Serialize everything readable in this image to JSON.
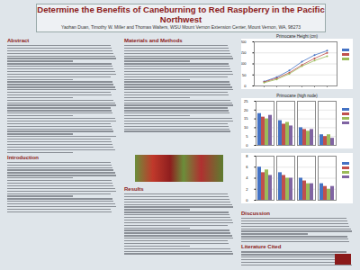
{
  "header": {
    "title": "Determine the Benefits of Caneburning to Red Raspberry in the Pacific Northwest",
    "authors": "Yaohan Duan, Timothy W. Miller and Thomas Walters, WSU Mount Vernon Extension Center, Mount Vernon, WA, 98273"
  },
  "columns": [
    {
      "sections": [
        "Abstract",
        "Introduction"
      ]
    },
    {
      "sections": [
        "Materials and Methods",
        "Results"
      ]
    },
    {
      "sections": [
        "Discussion",
        "Literature Cited"
      ]
    }
  ],
  "chart_data": [
    {
      "type": "line",
      "title": "Primocane Height (cm)",
      "categories": [
        null,
        null,
        null,
        null,
        null,
        null
      ],
      "series": [
        {
          "color": "#4472c4",
          "values": [
            20,
            40,
            70,
            110,
            140,
            160
          ]
        },
        {
          "color": "#c0504d",
          "values": [
            18,
            35,
            60,
            95,
            125,
            150
          ]
        },
        {
          "color": "#9bbb59",
          "values": [
            15,
            30,
            55,
            90,
            115,
            135
          ]
        }
      ],
      "ylim": [
        0,
        200
      ],
      "yticks": [
        0,
        50,
        100,
        150,
        200
      ],
      "tick_labels": "y",
      "legend": "right"
    },
    {
      "type": "bar",
      "title": "Primocane (high node)",
      "categories": [
        null,
        null,
        null,
        null
      ],
      "series": [
        {
          "color": "#4472c4",
          "values": [
            18,
            14,
            10,
            6
          ]
        },
        {
          "color": "#c0504d",
          "values": [
            16,
            12,
            9,
            5
          ]
        },
        {
          "color": "#9bbb59",
          "values": [
            15,
            13,
            8,
            6
          ]
        },
        {
          "color": "#8064a2",
          "values": [
            17,
            11,
            9,
            4
          ]
        }
      ],
      "ylim": [
        0,
        25
      ],
      "yticks": [
        0,
        5,
        10,
        15,
        20,
        25
      ],
      "tick_labels": "y",
      "legend": "right"
    },
    {
      "type": "bar",
      "categories": [
        null,
        null,
        null,
        null
      ],
      "series": [
        {
          "color": "#4472c4",
          "values": [
            6,
            5,
            4,
            3
          ]
        },
        {
          "color": "#c0504d",
          "values": [
            5,
            4.5,
            3.5,
            2.5
          ]
        },
        {
          "color": "#9bbb59",
          "values": [
            5.5,
            4,
            3,
            2
          ]
        },
        {
          "color": "#8064a2",
          "values": [
            4.5,
            4,
            3,
            2.5
          ]
        }
      ],
      "ylim": [
        0,
        8
      ],
      "yticks": [
        0,
        2,
        4,
        6,
        8
      ],
      "tick_labels": "y",
      "legend": "right"
    }
  ]
}
